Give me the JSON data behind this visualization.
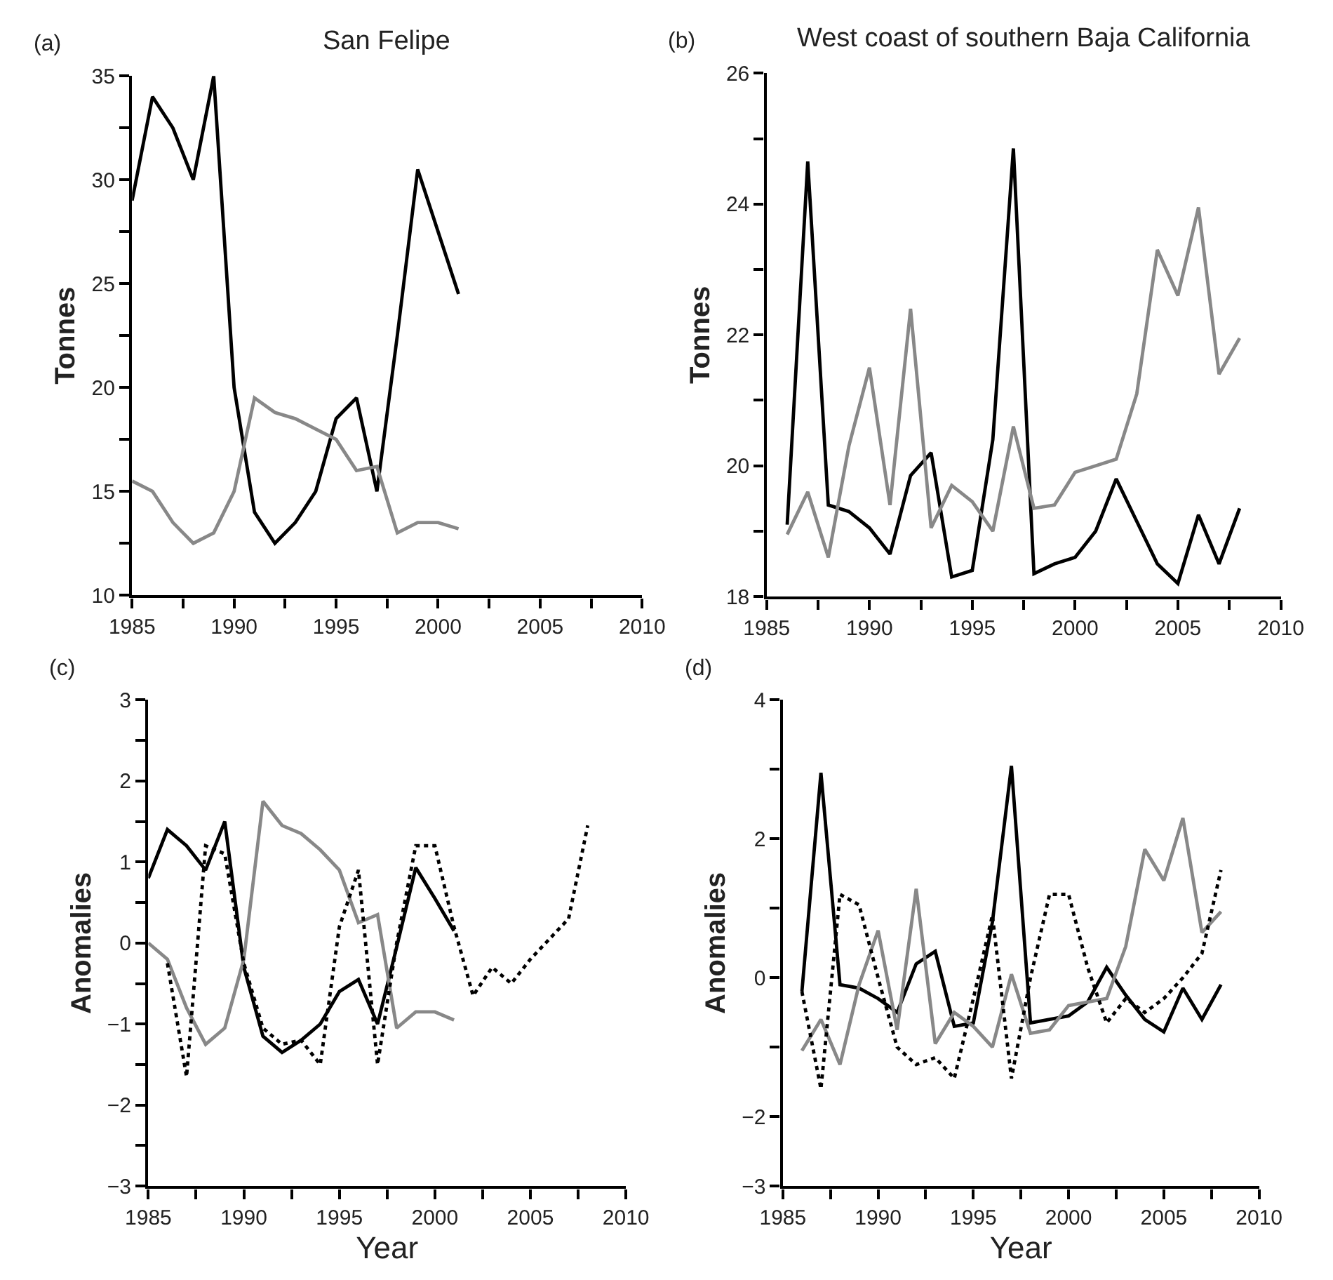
{
  "chart_data": [
    {
      "type": "line",
      "title": "San Felipe",
      "ylabel": "Tonnes",
      "annotations": [
        "(a)"
      ],
      "marker": "none",
      "x": [
        1985,
        1986,
        1987,
        1988,
        1989,
        1990,
        1991,
        1992,
        1993,
        1994,
        1995,
        1996,
        1997,
        1998,
        1999,
        2000,
        2001
      ],
      "xlim": [
        1985,
        2010
      ],
      "xticks": [
        1985,
        {
          "value": 1987.5,
          "label": null
        },
        1990,
        {
          "value": 1992.5,
          "label": null
        },
        1995,
        {
          "value": 1997.5,
          "label": null
        },
        2000,
        {
          "value": 2002.5,
          "label": null
        },
        2005,
        {
          "value": 2007.5,
          "label": null
        },
        2010
      ],
      "ylim": [
        10,
        35
      ],
      "yticks": [
        10,
        {
          "value": 12.5,
          "label": null
        },
        15,
        {
          "value": 17.5,
          "label": null
        },
        20,
        {
          "value": 22.5,
          "label": null
        },
        25,
        {
          "value": 27.5,
          "label": null
        },
        30,
        {
          "value": 32.5,
          "label": null
        },
        35
      ],
      "series": [
        {
          "color": "#000000",
          "line_style": "solid",
          "values": [
            29,
            34,
            32.5,
            30,
            35,
            20,
            14,
            12.5,
            13.5,
            15,
            18.5,
            19.5,
            15,
            22.5,
            30.5,
            27.5,
            24.5
          ]
        },
        {
          "color": "#888888",
          "line_style": "solid",
          "values": [
            15.5,
            15,
            13.5,
            12.5,
            13,
            15,
            19.5,
            18.8,
            18.5,
            18,
            17.5,
            16,
            16.2,
            13,
            13.5,
            13.5,
            13.2
          ]
        }
      ]
    },
    {
      "type": "line",
      "title": "West coast of southern Baja California",
      "ylabel": "Tonnes",
      "annotations": [
        "(b)"
      ],
      "marker": "none",
      "x": [
        1986,
        1987,
        1988,
        1989,
        1990,
        1991,
        1992,
        1993,
        1994,
        1995,
        1996,
        1997,
        1998,
        1999,
        2000,
        2001,
        2002,
        2003,
        2004,
        2005,
        2006,
        2007,
        2008
      ],
      "xlim": [
        1985,
        2010
      ],
      "xticks": [
        1985,
        {
          "value": 1987.5,
          "label": null
        },
        1990,
        {
          "value": 1992.5,
          "label": null
        },
        1995,
        {
          "value": 1997.5,
          "label": null
        },
        2000,
        {
          "value": 2002.5,
          "label": null
        },
        2005,
        {
          "value": 2007.5,
          "label": null
        },
        2010
      ],
      "ylim": [
        18,
        26
      ],
      "yticks": [
        18,
        {
          "value": 19,
          "label": null
        },
        20,
        {
          "value": 21,
          "label": null
        },
        22,
        {
          "value": 23,
          "label": null
        },
        24,
        {
          "value": 25,
          "label": null
        },
        26
      ],
      "series": [
        {
          "color": "#000000",
          "line_style": "solid",
          "values": [
            19.1,
            24.65,
            19.4,
            19.3,
            19.05,
            18.65,
            19.85,
            20.2,
            18.3,
            18.4,
            20.4,
            24.85,
            18.35,
            18.5,
            18.6,
            19.0,
            19.8,
            19.15,
            18.5,
            18.2,
            19.25,
            18.5,
            19.35
          ]
        },
        {
          "color": "#888888",
          "line_style": "solid",
          "values": [
            18.95,
            19.6,
            18.6,
            20.3,
            21.5,
            19.4,
            22.4,
            19.05,
            19.7,
            19.45,
            19.0,
            20.6,
            19.35,
            19.4,
            19.9,
            20.0,
            20.1,
            21.1,
            23.3,
            22.6,
            23.95,
            21.4,
            21.95
          ]
        }
      ]
    },
    {
      "type": "line",
      "xlabel": "Year",
      "ylabel": "Anomalies",
      "annotations": [
        "(c)"
      ],
      "marker": "none",
      "xlim": [
        1985,
        2010
      ],
      "xticks": [
        1985,
        {
          "value": 1987.5,
          "label": null
        },
        1990,
        {
          "value": 1992.5,
          "label": null
        },
        1995,
        {
          "value": 1997.5,
          "label": null
        },
        2000,
        {
          "value": 2002.5,
          "label": null
        },
        2005,
        {
          "value": 2007.5,
          "label": null
        },
        2010
      ],
      "ylim": [
        -3,
        3
      ],
      "yticks": [
        {
          "value": -3,
          "label": "−3"
        },
        {
          "value": -2.5,
          "label": null
        },
        {
          "value": -2,
          "label": "−2"
        },
        {
          "value": -1.5,
          "label": null
        },
        {
          "value": -1,
          "label": "−1"
        },
        {
          "value": -0.5,
          "label": null
        },
        0,
        {
          "value": 0.5,
          "label": null
        },
        1,
        {
          "value": 1.5,
          "label": null
        },
        2,
        {
          "value": 2.5,
          "label": null
        },
        3
      ],
      "series": [
        {
          "color": "#000000",
          "line_style": "solid",
          "x": [
            1985,
            1986,
            1987,
            1988,
            1989,
            1990,
            1991,
            1992,
            1993,
            1994,
            1995,
            1996,
            1997,
            1998,
            1999,
            2000,
            2001
          ],
          "values": [
            0.8,
            1.4,
            1.2,
            0.9,
            1.5,
            -0.3,
            -1.15,
            -1.35,
            -1.2,
            -1.0,
            -0.6,
            -0.45,
            -1.0,
            -0.05,
            0.93,
            0.55,
            0.15
          ]
        },
        {
          "color": "#888888",
          "line_style": "solid",
          "x": [
            1985,
            1986,
            1987,
            1988,
            1989,
            1990,
            1991,
            1992,
            1993,
            1994,
            1995,
            1996,
            1997,
            1998,
            1999,
            2000,
            2001
          ],
          "values": [
            0.0,
            -0.2,
            -0.8,
            -1.25,
            -1.05,
            -0.2,
            1.75,
            1.45,
            1.35,
            1.15,
            0.9,
            0.25,
            0.35,
            -1.05,
            -0.85,
            -0.85,
            -0.95
          ]
        },
        {
          "color": "#000000",
          "line_style": "dotted",
          "x": [
            1986,
            1987,
            1988,
            1989,
            1990,
            1991,
            1992,
            1993,
            1994,
            1995,
            1996,
            1997,
            1998,
            1999,
            2000,
            2001,
            2002,
            2003,
            2004,
            2005,
            2006,
            2007,
            2008
          ],
          "values": [
            -0.25,
            -1.65,
            1.2,
            1.1,
            -0.25,
            -1.05,
            -1.25,
            -1.2,
            -1.5,
            0.2,
            0.9,
            -1.5,
            0.0,
            1.2,
            1.2,
            0.2,
            -0.65,
            -0.3,
            -0.5,
            -0.2,
            0.05,
            0.3,
            1.45
          ]
        }
      ]
    },
    {
      "type": "line",
      "xlabel": "Year",
      "ylabel": "Anomalies",
      "annotations": [
        "(d)"
      ],
      "marker": "none",
      "x": [
        1986,
        1987,
        1988,
        1989,
        1990,
        1991,
        1992,
        1993,
        1994,
        1995,
        1996,
        1997,
        1998,
        1999,
        2000,
        2001,
        2002,
        2003,
        2004,
        2005,
        2006,
        2007,
        2008
      ],
      "xlim": [
        1985,
        2010
      ],
      "xticks": [
        1985,
        {
          "value": 1987.5,
          "label": null
        },
        1990,
        {
          "value": 1992.5,
          "label": null
        },
        1995,
        {
          "value": 1997.5,
          "label": null
        },
        2000,
        {
          "value": 2002.5,
          "label": null
        },
        2005,
        {
          "value": 2007.5,
          "label": null
        },
        2010
      ],
      "ylim": [
        -3,
        4
      ],
      "yticks": [
        {
          "value": -3,
          "label": "−3"
        },
        {
          "value": -2,
          "label": "−2"
        },
        {
          "value": -1,
          "label": null
        },
        0,
        {
          "value": 1,
          "label": null
        },
        2,
        {
          "value": 3,
          "label": null
        },
        4
      ],
      "series": [
        {
          "color": "#000000",
          "line_style": "solid",
          "values": [
            -0.2,
            2.95,
            -0.1,
            -0.15,
            -0.3,
            -0.5,
            0.2,
            0.38,
            -0.7,
            -0.65,
            0.8,
            3.05,
            -0.65,
            -0.6,
            -0.55,
            -0.35,
            0.15,
            -0.25,
            -0.6,
            -0.78,
            -0.15,
            -0.6,
            -0.1
          ]
        },
        {
          "color": "#888888",
          "line_style": "solid",
          "values": [
            -1.05,
            -0.6,
            -1.25,
            -0.1,
            0.68,
            -0.75,
            1.28,
            -0.95,
            -0.5,
            -0.7,
            -1.0,
            0.05,
            -0.8,
            -0.75,
            -0.4,
            -0.35,
            -0.3,
            0.45,
            1.85,
            1.4,
            2.3,
            0.65,
            0.95
          ]
        },
        {
          "color": "#000000",
          "line_style": "dotted",
          "values": [
            -0.2,
            -1.6,
            1.2,
            1.05,
            0.0,
            -1.0,
            -1.25,
            -1.15,
            -1.45,
            -0.3,
            0.9,
            -1.45,
            0.0,
            1.2,
            1.2,
            0.15,
            -0.65,
            -0.3,
            -0.5,
            -0.3,
            0.0,
            0.35,
            1.55
          ]
        }
      ]
    }
  ]
}
